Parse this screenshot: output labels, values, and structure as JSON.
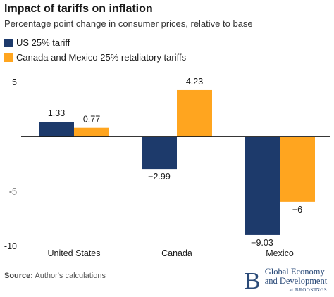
{
  "chart_data": {
    "type": "bar",
    "title": "Impact of tariffs on inflation",
    "subtitle": "Percentage point change in consumer prices, relative to base",
    "categories": [
      "United States",
      "Canada",
      "Mexico"
    ],
    "series": [
      {
        "name": "US 25% tariff",
        "color": "#1d3a6b",
        "values": [
          1.33,
          -2.99,
          -9.03
        ],
        "labels": [
          "1.33",
          "−2.99",
          "−9.03"
        ]
      },
      {
        "name": "Canada and Mexico 25% retaliatory tariffs",
        "color": "#ffa51f",
        "values": [
          0.77,
          4.23,
          -6
        ],
        "labels": [
          "0.77",
          "4.23",
          "−6"
        ]
      }
    ],
    "yticks": [
      5,
      0,
      -5,
      -10
    ],
    "ytick_labels": [
      "5",
      "",
      "-5",
      "-10"
    ],
    "ylim": [
      -10,
      5
    ],
    "xlabel": "",
    "ylabel": "",
    "grid": false,
    "legend": "top-left"
  },
  "footer": {
    "source_label": "Source:",
    "source_text": " Author's calculations"
  },
  "brand": {
    "mark": "B",
    "line1": "Global Economy",
    "line2": "and Development",
    "line3": "at BROOKINGS"
  }
}
